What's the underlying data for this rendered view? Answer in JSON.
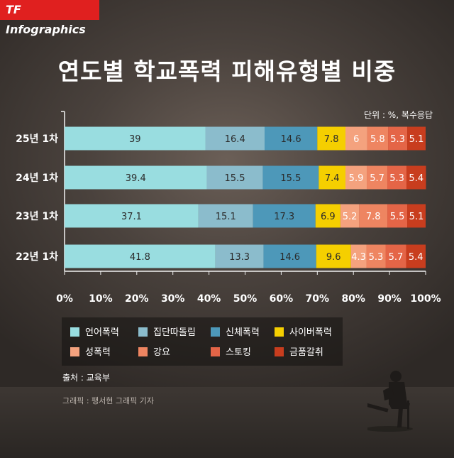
{
  "brand": "TF Infographics",
  "title": "연도별 학교폭력 피해유형별 비중",
  "unit_note": "단위 : %, 복수응답",
  "source": "출처 : 교육부",
  "credit": "그래픽 : 팽서현 그래픽 기자",
  "colors": {
    "언어폭력": "#99dde0",
    "집단따돌림": "#8bbccc",
    "신체폭력": "#4d98b9",
    "사이버폭력": "#f5cf00",
    "성폭력": "#f4a27e",
    "강요": "#ee8561",
    "스토킹": "#e46547",
    "금품갈취": "#c83d1e"
  },
  "chart_data": {
    "type": "bar",
    "orientation": "horizontal",
    "stacked": true,
    "categories": [
      "25년 1차",
      "24년 1차",
      "23년 1차",
      "22년 1차"
    ],
    "series": [
      {
        "name": "언어폭력",
        "values": [
          39,
          39.4,
          37.1,
          41.8
        ]
      },
      {
        "name": "집단따돌림",
        "values": [
          16.4,
          15.5,
          15.1,
          13.3
        ]
      },
      {
        "name": "신체폭력",
        "values": [
          14.6,
          15.5,
          17.3,
          14.6
        ]
      },
      {
        "name": "사이버폭력",
        "values": [
          7.8,
          7.4,
          6.9,
          9.6
        ]
      },
      {
        "name": "성폭력",
        "values": [
          6,
          5.9,
          5.2,
          4.3
        ]
      },
      {
        "name": "강요",
        "values": [
          5.8,
          5.7,
          7.8,
          5.3
        ]
      },
      {
        "name": "스토킹",
        "values": [
          5.3,
          5.3,
          5.5,
          5.7
        ]
      },
      {
        "name": "금품갈취",
        "values": [
          5.1,
          5.4,
          5.1,
          5.4
        ]
      }
    ],
    "xlim": [
      0,
      100
    ],
    "xticks": [
      "0%",
      "10%",
      "20%",
      "30%",
      "40%",
      "50%",
      "60%",
      "70%",
      "80%",
      "90%",
      "100%"
    ],
    "title": "연도별 학교폭력 피해유형별 비중",
    "legend_position": "bottom"
  }
}
